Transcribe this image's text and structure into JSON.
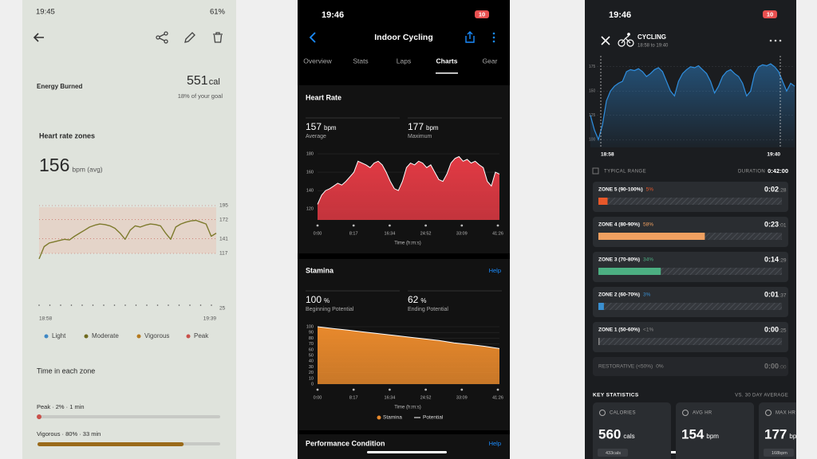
{
  "left": {
    "status": {
      "time": "19:45",
      "battery": "61%"
    },
    "energy": {
      "label": "Energy Burned",
      "value": 551,
      "unit": "cal",
      "goal": "18% of your goal"
    },
    "heart_rate": {
      "title": "Heart rate zones",
      "avg": 156,
      "avg_unit": "bpm (avg)",
      "chart": {
        "type": "line",
        "color": "#7d7a2c",
        "ylim": [
          117,
          195
        ],
        "yticks": [
          195,
          172,
          141,
          117
        ],
        "lower_tick": 25,
        "x_labels": [
          "18:58",
          "19:39"
        ],
        "values": [
          108,
          128,
          134,
          136,
          138,
          140,
          139,
          145,
          150,
          155,
          160,
          163,
          165,
          164,
          162,
          158,
          150,
          140,
          155,
          162,
          160,
          163,
          165,
          164,
          162,
          150,
          140,
          160,
          165,
          168,
          170,
          171,
          168,
          165,
          145,
          150
        ]
      },
      "legend": [
        {
          "name": "Light",
          "color": "#3f88c5"
        },
        {
          "name": "Moderate",
          "color": "#6f6a1e"
        },
        {
          "name": "Vigorous",
          "color": "#b57a1f"
        },
        {
          "name": "Peak",
          "color": "#c9504a"
        }
      ]
    },
    "zones": {
      "title": "Time in each zone",
      "items": [
        {
          "label": "Peak · 2% · 1 min",
          "percent": 2,
          "color": "#c9504a"
        },
        {
          "label": "Vigorous · 80% · 33 min",
          "percent": 80,
          "color": "#9a6a1a"
        }
      ]
    }
  },
  "middle": {
    "status": {
      "time": "19:46",
      "battery": "10"
    },
    "title": "Indoor Cycling",
    "tabs": [
      "Overview",
      "Stats",
      "Laps",
      "Charts",
      "Gear"
    ],
    "active_tab": "Charts",
    "heart_rate": {
      "title": "Heart Rate",
      "stats": [
        {
          "value": 157,
          "unit": "bpm",
          "label": "Average"
        },
        {
          "value": 177,
          "unit": "bpm",
          "label": "Maximum"
        }
      ],
      "chart": {
        "type": "area",
        "color": "#e23a44",
        "ylim": [
          108,
          187
        ],
        "yticks": [
          180,
          160,
          140,
          120
        ],
        "x_labels": [
          "0:00",
          "8:17",
          "16:34",
          "24:52",
          "33:09",
          "41:26"
        ],
        "x_title": "Time (h:m:s)",
        "values": [
          125,
          135,
          140,
          142,
          145,
          148,
          146,
          150,
          155,
          160,
          172,
          170,
          168,
          165,
          170,
          172,
          168,
          160,
          150,
          142,
          140,
          150,
          165,
          170,
          168,
          172,
          170,
          165,
          168,
          160,
          152,
          150,
          158,
          170,
          175,
          177,
          172,
          174,
          170,
          172,
          168,
          165,
          150,
          145,
          160,
          158
        ]
      }
    },
    "stamina": {
      "title": "Stamina",
      "help": "Help",
      "stats": [
        {
          "value": 100,
          "unit": "%",
          "label": "Beginning Potential"
        },
        {
          "value": 62,
          "unit": "%",
          "label": "Ending Potential"
        }
      ],
      "chart": {
        "type": "area",
        "color": "#e8892c",
        "ylim": [
          0,
          100
        ],
        "yticks": [
          100,
          90,
          80,
          70,
          60,
          50,
          40,
          30,
          20,
          10,
          0
        ],
        "x_labels": [
          "0:00",
          "8:17",
          "16:34",
          "24:52",
          "33:09",
          "41:26"
        ],
        "x_title": "Time (h:m:s)",
        "legend": [
          {
            "name": "Stamina",
            "color": "#e8892c"
          },
          {
            "name": "Potential",
            "color": "#ffffff"
          }
        ],
        "values": [
          100,
          97,
          94,
          91,
          88,
          85,
          82,
          79,
          76,
          72,
          69,
          66,
          62
        ]
      }
    },
    "performance": {
      "title": "Performance Condition",
      "help": "Help"
    }
  },
  "right": {
    "status": {
      "time": "19:46",
      "battery": "10"
    },
    "activity": "CYCLING",
    "time_range": "18:58 to 19:40",
    "chart": {
      "type": "area",
      "color": "#2f8fe0",
      "ylim": [
        92,
        183
      ],
      "yticks": [
        175,
        150,
        125,
        100
      ],
      "x_labels": [
        "18:58",
        "19:40"
      ],
      "values": [
        125,
        110,
        100,
        115,
        140,
        150,
        155,
        158,
        160,
        170,
        172,
        171,
        173,
        170,
        165,
        168,
        172,
        174,
        170,
        160,
        150,
        145,
        160,
        168,
        172,
        175,
        174,
        176,
        172,
        168,
        160,
        148,
        155,
        165,
        170,
        172,
        168,
        165,
        158,
        145,
        150,
        168,
        175,
        177,
        176,
        178,
        175,
        170,
        160,
        150,
        158,
        155
      ]
    },
    "typical_range": "TYPICAL RANGE",
    "duration_label": "DURATION",
    "duration": "0:42:00",
    "zones": [
      {
        "name": "ZONE 5 (90-100%)",
        "percent": 5,
        "percent_label": "5%",
        "time": "0:02",
        "seconds": ":28",
        "color": "#e8582a"
      },
      {
        "name": "ZONE 4 (80-90%)",
        "percent": 58,
        "percent_label": "58%",
        "time": "0:23",
        "seconds": ":01",
        "color": "#f0a060"
      },
      {
        "name": "ZONE 3 (70-80%)",
        "percent": 34,
        "percent_label": "34%",
        "time": "0:14",
        "seconds": ":29",
        "color": "#4caf82"
      },
      {
        "name": "ZONE 2 (60-70%)",
        "percent": 3,
        "percent_label": "3%",
        "time": "0:01",
        "seconds": ":37",
        "color": "#3a8fd0"
      },
      {
        "name": "ZONE 1 (50-60%)",
        "percent": 0.5,
        "percent_label": "<1%",
        "time": "0:00",
        "seconds": ":25",
        "color": "#8a8a8a"
      }
    ],
    "restorative": {
      "name": "RESTORATIVE (<50%)",
      "percent_label": "0%",
      "time": "0:00",
      "seconds": ":00"
    },
    "key_stats": {
      "title": "KEY STATISTICS",
      "compare": "VS. 30 DAY AVERAGE",
      "cards": [
        {
          "label": "CALORIES",
          "value": 560,
          "unit": "cals",
          "average": "433cals"
        },
        {
          "label": "AVG HR",
          "value": 154,
          "unit": "bpm"
        },
        {
          "label": "MAX HR",
          "value": 177,
          "unit": "bpm",
          "average": "168bpm"
        }
      ]
    }
  }
}
